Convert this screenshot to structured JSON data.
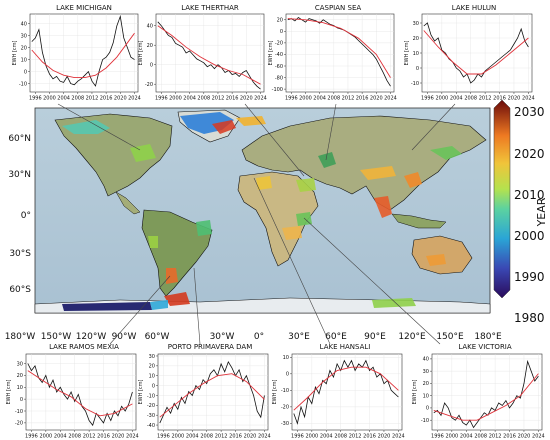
{
  "chart_data": [
    {
      "type": "line",
      "title": "LAKE MICHIGAN",
      "ylabel": "EWH [cm]",
      "x_ticks": [
        "1996",
        "2000",
        "2004",
        "2008",
        "2012",
        "2016",
        "2020",
        "2024"
      ],
      "y_ticks": [
        -10,
        0,
        10,
        20,
        30,
        40
      ],
      "xlim": [
        1994.5,
        2025
      ],
      "ylim": [
        -17,
        48
      ],
      "series": [
        {
          "x": [
            1995,
            1996,
            1997,
            1998,
            1999,
            2000,
            2001,
            2002,
            2003,
            2004,
            2005,
            2006,
            2007,
            2008,
            2009,
            2010,
            2011,
            2012,
            2013,
            2014,
            2015,
            2016,
            2017,
            2018,
            2019,
            2020,
            2021,
            2022,
            2023,
            2024
          ],
          "y": [
            25,
            28,
            35,
            16,
            5,
            -2,
            -6,
            -4,
            -8,
            -9,
            -4,
            -10,
            -11,
            -8,
            -6,
            -3,
            0,
            -8,
            -12,
            0,
            10,
            12,
            16,
            24,
            38,
            46,
            28,
            20,
            12,
            10
          ]
        },
        {
          "x": [
            1995,
            1998,
            2001,
            2004,
            2007,
            2010,
            2013,
            2016,
            2019,
            2022,
            2024
          ],
          "y": [
            18,
            8,
            1,
            -3,
            -5,
            -5,
            -3,
            3,
            12,
            24,
            32
          ]
        }
      ]
    },
    {
      "type": "line",
      "title": "LAKE THERTHAR",
      "ylabel": "EWH [cm]",
      "x_ticks": [
        "1996",
        "2000",
        "2004",
        "2008",
        "2012",
        "2016",
        "2020",
        "2024"
      ],
      "y_ticks": [
        -20,
        0,
        20,
        40
      ],
      "xlim": [
        1994.5,
        2025
      ],
      "ylim": [
        -28,
        52
      ],
      "series": [
        {
          "x": [
            1995,
            1996,
            1997,
            1998,
            1999,
            2000,
            2001,
            2002,
            2003,
            2004,
            2005,
            2006,
            2007,
            2008,
            2009,
            2010,
            2011,
            2012,
            2013,
            2014,
            2015,
            2016,
            2017,
            2018,
            2019,
            2020,
            2021,
            2022,
            2023,
            2024
          ],
          "y": [
            44,
            40,
            35,
            30,
            28,
            22,
            20,
            18,
            12,
            14,
            10,
            6,
            4,
            2,
            -2,
            0,
            -4,
            0,
            -3,
            -8,
            -6,
            -10,
            -9,
            -12,
            -8,
            -6,
            -12,
            -18,
            -22,
            -25
          ]
        },
        {
          "x": [
            1995,
            1999,
            2003,
            2007,
            2011,
            2015,
            2019,
            2024
          ],
          "y": [
            40,
            30,
            18,
            8,
            0,
            -6,
            -10,
            -20
          ]
        }
      ]
    },
    {
      "type": "line",
      "title": "CASPIAN SEA",
      "ylabel": "EWH [cm]",
      "x_ticks": [
        "1996",
        "2000",
        "2004",
        "2008",
        "2012",
        "2016",
        "2020",
        "2024"
      ],
      "y_ticks": [
        -100,
        -80,
        -60,
        -40,
        -20,
        0,
        20
      ],
      "xlim": [
        1994.5,
        2025
      ],
      "ylim": [
        -105,
        30
      ],
      "series": [
        {
          "x": [
            1995,
            1996,
            1997,
            1998,
            1999,
            2000,
            2001,
            2002,
            2003,
            2004,
            2005,
            2006,
            2007,
            2008,
            2009,
            2010,
            2011,
            2012,
            2013,
            2014,
            2015,
            2016,
            2017,
            2018,
            2019,
            2020,
            2021,
            2022,
            2023,
            2024
          ],
          "y": [
            20,
            22,
            18,
            24,
            20,
            16,
            22,
            20,
            18,
            14,
            20,
            16,
            12,
            10,
            6,
            4,
            2,
            -2,
            -6,
            -10,
            -16,
            -22,
            -28,
            -34,
            -40,
            -48,
            -60,
            -72,
            -85,
            -95
          ]
        },
        {
          "x": [
            1995,
            2000,
            2005,
            2010,
            2015,
            2020,
            2024
          ],
          "y": [
            22,
            20,
            15,
            5,
            -12,
            -40,
            -80
          ]
        }
      ]
    },
    {
      "type": "line",
      "title": "LAKE HULUN",
      "ylabel": "EWH [cm]",
      "x_ticks": [
        "1996",
        "2000",
        "2004",
        "2008",
        "2012",
        "2016",
        "2020",
        "2024"
      ],
      "y_ticks": [
        -10,
        0,
        10,
        20,
        30
      ],
      "xlim": [
        1994.5,
        2025
      ],
      "ylim": [
        -16,
        36
      ],
      "series": [
        {
          "x": [
            1995,
            1996,
            1997,
            1998,
            1999,
            2000,
            2001,
            2002,
            2003,
            2004,
            2005,
            2006,
            2007,
            2008,
            2009,
            2010,
            2011,
            2012,
            2013,
            2014,
            2015,
            2016,
            2017,
            2018,
            2019,
            2020,
            2021,
            2022,
            2023,
            2024
          ],
          "y": [
            28,
            30,
            22,
            18,
            20,
            12,
            10,
            6,
            4,
            0,
            -2,
            -6,
            -4,
            -10,
            -8,
            -4,
            -6,
            -2,
            0,
            2,
            4,
            6,
            8,
            10,
            12,
            16,
            20,
            26,
            18,
            14
          ]
        },
        {
          "x": [
            1995,
            1999,
            2003,
            2007,
            2011,
            2015,
            2019,
            2024
          ],
          "y": [
            25,
            14,
            4,
            -4,
            -4,
            2,
            10,
            20
          ]
        }
      ]
    },
    {
      "type": "line",
      "title": "LAKE RAMOS MEXIA",
      "ylabel": "EWH [cm]",
      "x_ticks": [
        "1996",
        "2000",
        "2004",
        "2008",
        "2012",
        "2016",
        "2020",
        "2024"
      ],
      "y_ticks": [
        -20,
        -10,
        0,
        10,
        20,
        30
      ],
      "xlim": [
        1994.5,
        2025
      ],
      "ylim": [
        -26,
        38
      ],
      "series": [
        {
          "x": [
            1995,
            1996,
            1997,
            1998,
            1999,
            2000,
            2001,
            2002,
            2003,
            2004,
            2005,
            2006,
            2007,
            2008,
            2009,
            2010,
            2011,
            2012,
            2013,
            2014,
            2015,
            2016,
            2017,
            2018,
            2019,
            2020,
            2021,
            2022,
            2023,
            2024
          ],
          "y": [
            30,
            24,
            28,
            18,
            14,
            20,
            10,
            16,
            6,
            10,
            4,
            0,
            6,
            -2,
            4,
            -6,
            -10,
            -18,
            -22,
            -12,
            -16,
            -20,
            -12,
            -18,
            -10,
            -14,
            -6,
            -10,
            -4,
            6
          ]
        },
        {
          "x": [
            1995,
            1999,
            2003,
            2007,
            2011,
            2015,
            2019,
            2024
          ],
          "y": [
            24,
            16,
            8,
            2,
            -8,
            -14,
            -12,
            -4
          ]
        }
      ]
    },
    {
      "type": "line",
      "title": "PORTO PRIMAVERA DAM",
      "ylabel": "EWH [cm]",
      "x_ticks": [
        "1996",
        "2000",
        "2004",
        "2008",
        "2012",
        "2016",
        "2020",
        "2024"
      ],
      "y_ticks": [
        -40,
        -30,
        -20,
        -10,
        0,
        10,
        20,
        30
      ],
      "xlim": [
        1994.5,
        2025
      ],
      "ylim": [
        -45,
        32
      ],
      "series": [
        {
          "x": [
            1995,
            1996,
            1997,
            1998,
            1999,
            2000,
            2001,
            2002,
            2003,
            2004,
            2005,
            2006,
            2007,
            2008,
            2009,
            2010,
            2011,
            2012,
            2013,
            2014,
            2015,
            2016,
            2017,
            2018,
            2019,
            2020,
            2021,
            2022,
            2023,
            2024
          ],
          "y": [
            -38,
            -30,
            -22,
            -28,
            -18,
            -24,
            -12,
            -18,
            -6,
            -10,
            0,
            -4,
            6,
            2,
            12,
            16,
            10,
            22,
            14,
            24,
            18,
            10,
            16,
            4,
            10,
            0,
            -10,
            -26,
            -32,
            -10
          ]
        },
        {
          "x": [
            1995,
            1999,
            2003,
            2007,
            2011,
            2015,
            2019,
            2024
          ],
          "y": [
            -32,
            -20,
            -8,
            2,
            10,
            12,
            4,
            -14
          ]
        }
      ]
    },
    {
      "type": "line",
      "title": "LAKE HANSALI",
      "ylabel": "EWH [cm]",
      "x_ticks": [
        "1996",
        "2000",
        "2004",
        "2008",
        "2012",
        "2016",
        "2020",
        "2024"
      ],
      "y_ticks": [
        -30,
        -20,
        -10,
        0,
        10
      ],
      "xlim": [
        1994.5,
        2025
      ],
      "ylim": [
        -34,
        12
      ],
      "series": [
        {
          "x": [
            1995,
            1996,
            1997,
            1998,
            1999,
            2000,
            2001,
            2002,
            2003,
            2004,
            2005,
            2006,
            2007,
            2008,
            2009,
            2010,
            2011,
            2012,
            2013,
            2014,
            2015,
            2016,
            2017,
            2018,
            2019,
            2020,
            2021,
            2022,
            2023,
            2024
          ],
          "y": [
            -24,
            -30,
            -20,
            -26,
            -14,
            -18,
            -8,
            -12,
            -4,
            -6,
            2,
            -2,
            6,
            2,
            8,
            4,
            8,
            2,
            6,
            4,
            8,
            2,
            4,
            -2,
            0,
            -6,
            -4,
            -10,
            -12,
            -14
          ]
        },
        {
          "x": [
            1995,
            1999,
            2003,
            2007,
            2011,
            2015,
            2019,
            2024
          ],
          "y": [
            -22,
            -14,
            -5,
            2,
            4,
            4,
            0,
            -10
          ]
        }
      ]
    },
    {
      "type": "line",
      "title": "LAKE VICTORIA",
      "ylabel": "EWH [cm]",
      "x_ticks": [
        "1996",
        "2000",
        "2004",
        "2008",
        "2012",
        "2016",
        "2020",
        "2024"
      ],
      "y_ticks": [
        -10,
        0,
        10,
        20,
        30,
        40
      ],
      "xlim": [
        1994.5,
        2025
      ],
      "ylim": [
        -18,
        44
      ],
      "series": [
        {
          "x": [
            1995,
            1996,
            1997,
            1998,
            1999,
            2000,
            2001,
            2002,
            2003,
            2004,
            2005,
            2006,
            2007,
            2008,
            2009,
            2010,
            2011,
            2012,
            2013,
            2014,
            2015,
            2016,
            2017,
            2018,
            2019,
            2020,
            2021,
            2022,
            2023,
            2024
          ],
          "y": [
            -4,
            -2,
            -6,
            4,
            0,
            -8,
            -10,
            -6,
            -12,
            -14,
            -10,
            -16,
            -12,
            -8,
            -4,
            -6,
            0,
            -2,
            4,
            2,
            6,
            0,
            4,
            10,
            8,
            20,
            38,
            30,
            22,
            26
          ]
        },
        {
          "x": [
            1995,
            1999,
            2003,
            2007,
            2011,
            2015,
            2019,
            2024
          ],
          "y": [
            -2,
            -6,
            -10,
            -10,
            -4,
            2,
            10,
            28
          ]
        }
      ]
    }
  ],
  "map": {
    "lat_labels": [
      "60°N",
      "30°N",
      "0°",
      "30°S",
      "60°S"
    ],
    "lon_labels": [
      "180°W",
      "150°W",
      "120°W",
      "90°W",
      "60°W",
      "30°W",
      "0°",
      "30°E",
      "60°E",
      "90°E",
      "120°E",
      "150°E",
      "180°E"
    ]
  },
  "colorbar": {
    "label": "YEAR",
    "ticks": [
      "2030",
      "2020",
      "2010",
      "2000",
      "1990",
      "1980"
    ]
  }
}
